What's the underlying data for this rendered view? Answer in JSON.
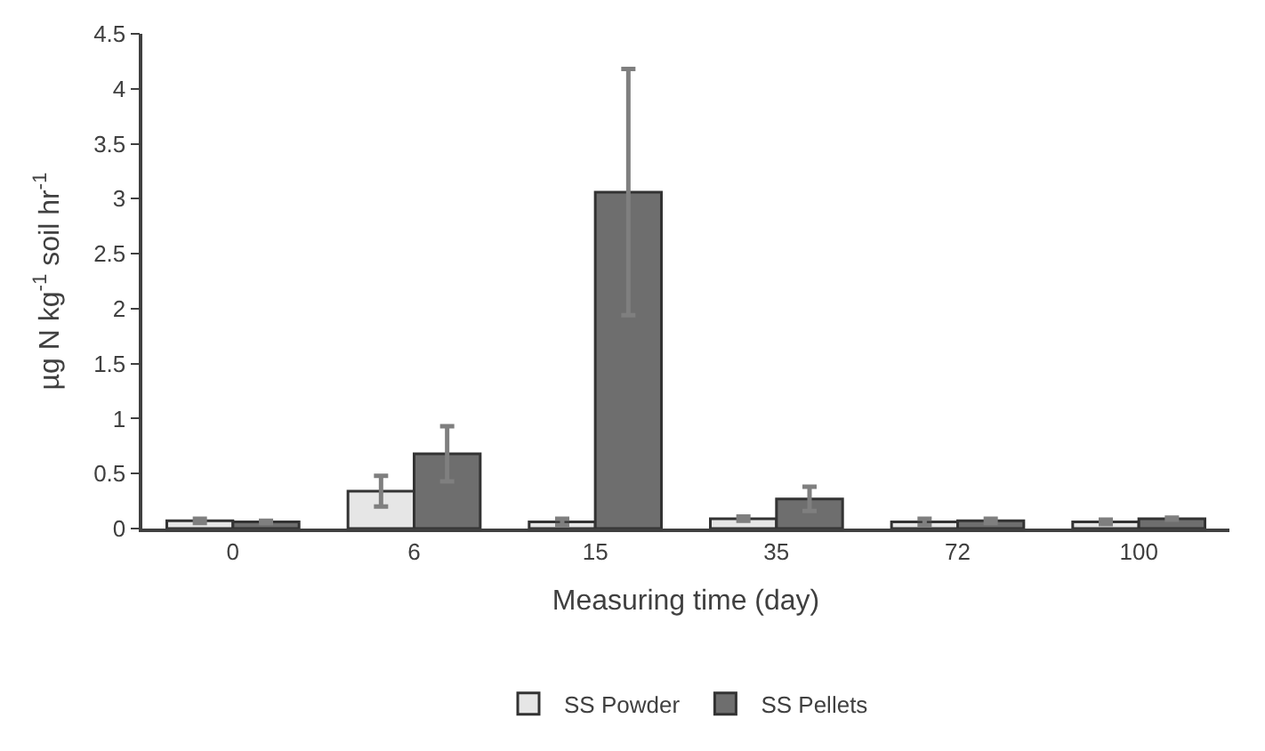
{
  "chart_data": {
    "type": "bar",
    "xlabel": "Measuring time (day)",
    "ylabel": "µg N kg$^{-1}$ soil hr$^{-1}$",
    "categories": [
      "0",
      "6",
      "15",
      "35",
      "72",
      "100"
    ],
    "series": [
      {
        "name": "SS Powder",
        "color": "#e6e6e6",
        "values": [
          0.07,
          0.34,
          0.06,
          0.09,
          0.06,
          0.06
        ],
        "errors": [
          0.02,
          0.14,
          0.03,
          0.02,
          0.03,
          0.02
        ]
      },
      {
        "name": "SS Pellets",
        "color": "#6e6e6e",
        "values": [
          0.06,
          0.68,
          3.06,
          0.27,
          0.07,
          0.09
        ],
        "errors": [
          0.01,
          0.25,
          1.12,
          0.11,
          0.02,
          0.01
        ]
      }
    ],
    "ylim": [
      0,
      4.5
    ],
    "yticks": [
      0,
      0.5,
      1,
      1.5,
      2,
      2.5,
      3,
      3.5,
      4,
      4.5
    ],
    "legend": "bottom"
  }
}
